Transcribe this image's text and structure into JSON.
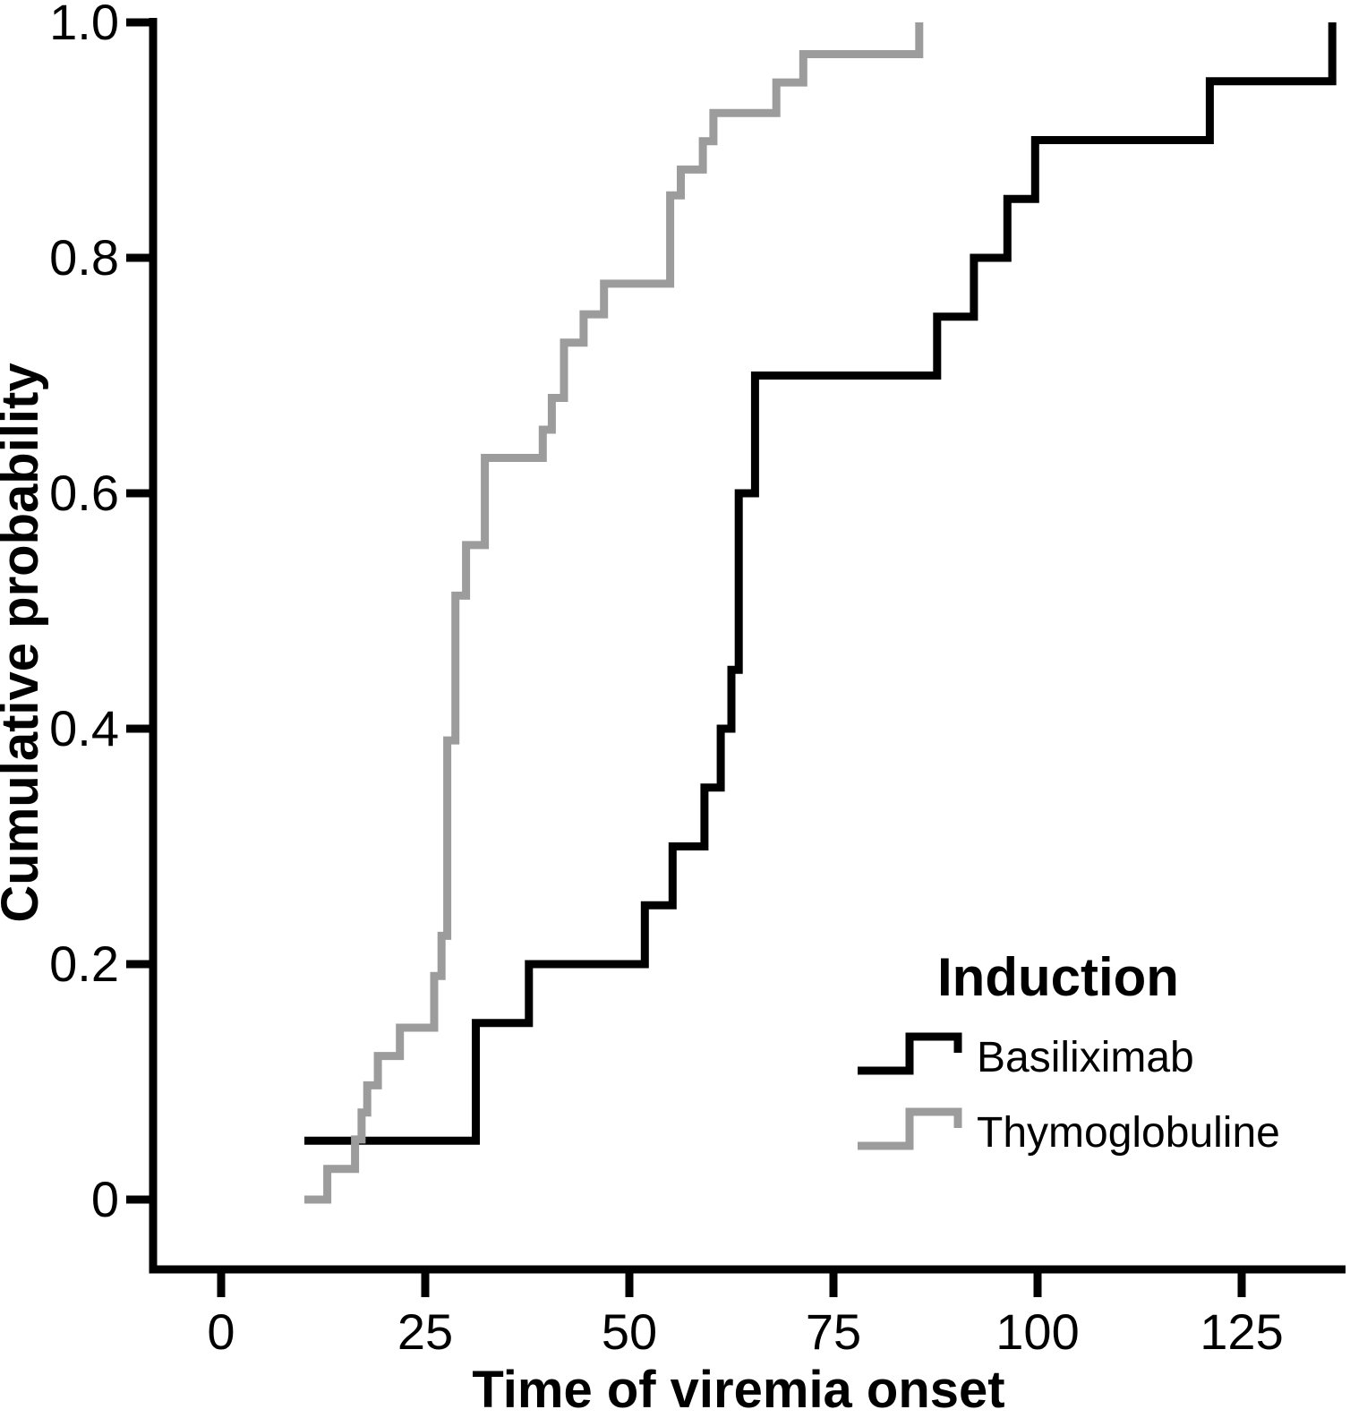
{
  "figure": {
    "background": "#ffffff",
    "axis_color": "#000000"
  },
  "chart_data": {
    "type": "line",
    "subtype": "step-function-cumulative-incidence",
    "title": "",
    "xlabel": "Time of viremia onset",
    "ylabel": "Cumulative probability",
    "xlim": [
      -8.3,
      138.3
    ],
    "ylim": [
      0,
      1.0
    ],
    "x_ticks": [
      0,
      25,
      50,
      75,
      100,
      125
    ],
    "x_tick_labels": [
      "0",
      "25",
      "50",
      "75",
      "100",
      "125"
    ],
    "y_ticks": [
      0,
      0.2,
      0.4,
      0.6,
      0.8,
      1.0
    ],
    "y_tick_labels": [
      "0",
      "0.2",
      "0.4",
      "0.6",
      "0.8",
      "1.0"
    ],
    "grid": false,
    "legend": {
      "title": "Induction",
      "position": "lower-right",
      "entries": [
        "Basiliximab",
        "Thymoglobuline"
      ]
    },
    "series": [
      {
        "name": "Basiliximab",
        "color": "#000000",
        "step_events_x_y": [
          [
            10.2,
            0.05
          ],
          [
            31.2,
            0.15
          ],
          [
            37.7,
            0.2
          ],
          [
            51.9,
            0.25
          ],
          [
            55.3,
            0.3
          ],
          [
            59.2,
            0.35
          ],
          [
            61.2,
            0.4
          ],
          [
            62.5,
            0.45
          ],
          [
            63.4,
            0.6
          ],
          [
            65.4,
            0.7
          ],
          [
            87.7,
            0.75
          ],
          [
            92.2,
            0.8
          ],
          [
            96.3,
            0.85
          ],
          [
            99.7,
            0.9
          ],
          [
            121.1,
            0.95
          ],
          [
            136.1,
            1.0
          ]
        ]
      },
      {
        "name": "Thymoglobuline",
        "color": "#9c9c9c",
        "step_events_x_y": [
          [
            10.2,
            0.0
          ],
          [
            13.0,
            0.026
          ],
          [
            16.4,
            0.051
          ],
          [
            17.2,
            0.074
          ],
          [
            17.9,
            0.097
          ],
          [
            19.2,
            0.122
          ],
          [
            21.9,
            0.146
          ],
          [
            26.1,
            0.19
          ],
          [
            27.0,
            0.224
          ],
          [
            27.7,
            0.39
          ],
          [
            28.7,
            0.513
          ],
          [
            30.0,
            0.556
          ],
          [
            32.3,
            0.63
          ],
          [
            39.4,
            0.654
          ],
          [
            40.5,
            0.681
          ],
          [
            42.0,
            0.728
          ],
          [
            44.4,
            0.752
          ],
          [
            46.9,
            0.778
          ],
          [
            55.0,
            0.853
          ],
          [
            56.3,
            0.875
          ],
          [
            59.0,
            0.899
          ],
          [
            60.3,
            0.923
          ],
          [
            68.0,
            0.949
          ],
          [
            71.3,
            0.973
          ],
          [
            85.5,
            1.0
          ]
        ]
      }
    ]
  }
}
